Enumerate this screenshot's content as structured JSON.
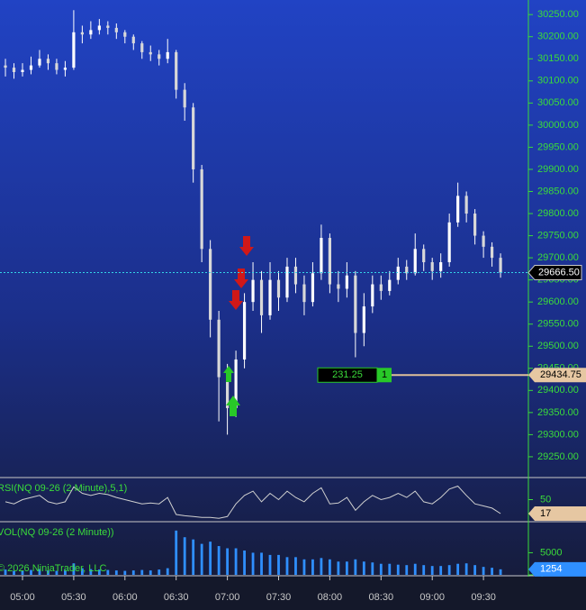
{
  "chart_data": {
    "type": "candlestick",
    "x": [
      "04:50",
      "04:55",
      "05:00",
      "05:05",
      "05:10",
      "05:15",
      "05:20",
      "05:25",
      "05:30",
      "05:35",
      "05:40",
      "05:45",
      "05:50",
      "05:55",
      "06:00",
      "06:05",
      "06:10",
      "06:15",
      "06:20",
      "06:25",
      "06:30",
      "06:35",
      "06:40",
      "06:45",
      "06:50",
      "06:55",
      "07:00",
      "07:05",
      "07:10",
      "07:15",
      "07:20",
      "07:25",
      "07:30",
      "07:35",
      "07:40",
      "07:45",
      "07:50",
      "07:55",
      "08:00",
      "08:05",
      "08:10",
      "08:15",
      "08:20",
      "08:25",
      "08:30",
      "08:35",
      "08:40",
      "08:45",
      "08:50",
      "08:55",
      "09:00",
      "09:05",
      "09:10",
      "09:15",
      "09:20",
      "09:25",
      "09:30",
      "09:35",
      "09:40"
    ],
    "open": [
      30135,
      30130,
      30120,
      30125,
      30135,
      30150,
      30140,
      30125,
      30130,
      30210,
      30205,
      30215,
      30225,
      30220,
      30210,
      30200,
      30185,
      30165,
      30160,
      30150,
      30165,
      30080,
      30040,
      29900,
      29720,
      29560,
      29430,
      29360,
      29470,
      29600,
      29650,
      29570,
      29650,
      29610,
      29680,
      29640,
      29600,
      29665,
      29745,
      29640,
      29630,
      29660,
      29530,
      29590,
      29640,
      29625,
      29650,
      29680,
      29665,
      29720,
      29690,
      29670,
      29690,
      29780,
      29840,
      29800,
      29750,
      29725,
      29700
    ],
    "high": [
      30150,
      30140,
      30140,
      30155,
      30170,
      30160,
      30150,
      30145,
      30260,
      30225,
      30235,
      30240,
      30235,
      30230,
      30215,
      30205,
      30190,
      30180,
      30170,
      30195,
      30170,
      30095,
      30050,
      29910,
      29740,
      29580,
      29460,
      29490,
      29620,
      29690,
      29670,
      29690,
      29670,
      29700,
      29700,
      29660,
      29690,
      29775,
      29755,
      29670,
      29690,
      29670,
      29620,
      29660,
      29660,
      29670,
      29700,
      29695,
      29755,
      29730,
      29700,
      29710,
      29800,
      29870,
      29850,
      29810,
      29760,
      29735,
      29710
    ],
    "low": [
      30110,
      30105,
      30110,
      30115,
      30130,
      30125,
      30115,
      30110,
      30125,
      30185,
      30195,
      30205,
      30205,
      30195,
      30185,
      30170,
      30150,
      30145,
      30135,
      30140,
      30060,
      30010,
      29870,
      29690,
      29520,
      29330,
      29300,
      29340,
      29450,
      29580,
      29530,
      29560,
      29580,
      29600,
      29620,
      29570,
      29590,
      29650,
      29620,
      29600,
      29610,
      29475,
      29500,
      29575,
      29605,
      29615,
      29640,
      29650,
      29660,
      29670,
      29650,
      29655,
      29680,
      29770,
      29780,
      29730,
      29700,
      29680,
      29655
    ],
    "close": [
      30130,
      30120,
      30125,
      30135,
      30150,
      30140,
      30125,
      30130,
      30210,
      30205,
      30215,
      30225,
      30220,
      30210,
      30200,
      30185,
      30165,
      30160,
      30150,
      30165,
      30080,
      30040,
      29900,
      29720,
      29560,
      29430,
      29360,
      29470,
      29600,
      29650,
      29570,
      29650,
      29610,
      29680,
      29640,
      29600,
      29665,
      29745,
      29640,
      29630,
      29660,
      29530,
      29590,
      29640,
      29625,
      29650,
      29680,
      29665,
      29720,
      29690,
      29670,
      29690,
      29780,
      29840,
      29800,
      29750,
      29725,
      29700,
      29666.5
    ],
    "color": "#ffffff",
    "ylim": [
      29203,
      30283
    ],
    "yticks": [
      {
        "value": 29250,
        "label": "29250.00"
      },
      {
        "value": 29300,
        "label": "29300.00"
      },
      {
        "value": 29350,
        "label": "29350.00"
      },
      {
        "value": 29400,
        "label": "29400.00"
      },
      {
        "value": 29450,
        "label": "29450.00"
      },
      {
        "value": 29500,
        "label": "29500.00"
      },
      {
        "value": 29550,
        "label": "29550.00"
      },
      {
        "value": 29600,
        "label": "29600.00"
      },
      {
        "value": 29650,
        "label": "29650.00"
      },
      {
        "value": 29700,
        "label": "29700.00"
      },
      {
        "value": 29750,
        "label": "29750.00"
      },
      {
        "value": 29800,
        "label": "29800.00"
      },
      {
        "value": 29850,
        "label": "29850.00"
      },
      {
        "value": 29900,
        "label": "29900.00"
      },
      {
        "value": 29950,
        "label": "29950.00"
      },
      {
        "value": 30000,
        "label": "30000.00"
      },
      {
        "value": 30050,
        "label": "30050.00"
      },
      {
        "value": 30100,
        "label": "30100.00"
      },
      {
        "value": 30150,
        "label": "30150.00"
      },
      {
        "value": 30200,
        "label": "30200.00"
      },
      {
        "value": 30250,
        "label": "30250.00"
      }
    ],
    "xticks": [
      "05:00",
      "05:30",
      "06:00",
      "06:30",
      "07:00",
      "07:30",
      "08:00",
      "08:30",
      "09:00",
      "09:30"
    ],
    "current_price": {
      "value": 29666.5,
      "label": "29666.50"
    },
    "order": {
      "value": 29434.75,
      "label": "29434.75",
      "pnl": "231.25",
      "quantity": "1"
    },
    "rsi": {
      "title": "RSI(NQ 09-26 (2 Minute),5,1)",
      "color": "#cfcfcf",
      "ylim": [
        0,
        100
      ],
      "yticks": [
        50
      ],
      "current": 17,
      "values": [
        45,
        40,
        50,
        55,
        60,
        45,
        40,
        45,
        80,
        65,
        60,
        65,
        62,
        55,
        50,
        45,
        40,
        42,
        40,
        55,
        15,
        12,
        10,
        8,
        8,
        6,
        10,
        40,
        60,
        70,
        45,
        65,
        50,
        70,
        55,
        45,
        65,
        78,
        40,
        42,
        55,
        25,
        45,
        60,
        50,
        55,
        65,
        55,
        70,
        45,
        40,
        55,
        75,
        82,
        60,
        40,
        35,
        30,
        17
      ]
    },
    "volume": {
      "title": "VOL(NQ 09-26 (2 Minute))",
      "color": "#2f8fff",
      "ylim": [
        0,
        11600
      ],
      "yticks": [
        0,
        5000
      ],
      "current": 1254,
      "values": [
        1200,
        900,
        1000,
        1100,
        1300,
        1000,
        900,
        1100,
        2600,
        1500,
        1300,
        1200,
        1100,
        1000,
        900,
        1000,
        1100,
        1000,
        1200,
        1500,
        10000,
        8500,
        8000,
        7000,
        7500,
        6500,
        6000,
        6000,
        5500,
        5000,
        5000,
        4500,
        4500,
        4000,
        4000,
        3500,
        3500,
        3800,
        3500,
        3000,
        3000,
        3500,
        3000,
        2800,
        2500,
        2500,
        2300,
        2200,
        2500,
        2200,
        2000,
        2000,
        2200,
        2500,
        2600,
        2200,
        1800,
        1600,
        1254
      ]
    },
    "copyright": "© 2026 NinjaTrader, LLC"
  }
}
